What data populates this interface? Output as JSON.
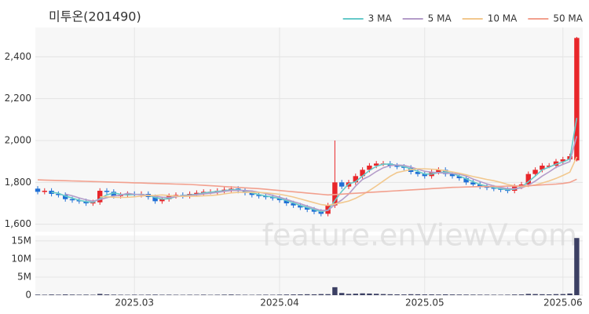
{
  "chart_data": {
    "type": "candlestick",
    "title": "미투온(201490)",
    "watermark": "feature.enViewV.com",
    "categories": [
      null,
      null,
      null,
      null,
      null,
      null,
      null,
      null,
      null,
      null,
      null,
      null,
      null,
      null,
      null,
      null,
      null,
      null,
      null,
      null,
      null,
      null,
      null,
      null,
      null,
      null,
      null,
      null,
      null,
      null,
      null,
      null,
      null,
      null,
      null,
      null,
      null,
      null,
      null,
      null,
      null,
      null,
      null,
      null,
      null,
      null,
      null,
      null,
      null,
      null,
      null,
      null,
      null,
      null,
      null,
      null,
      null,
      null,
      null,
      null,
      null,
      null,
      null,
      null,
      null,
      null,
      null,
      null,
      null,
      null,
      null,
      null,
      null,
      null,
      null,
      null,
      null,
      null,
      null
    ],
    "xticks": [
      {
        "value": 14,
        "label": "2025.03"
      },
      {
        "value": 35,
        "label": "2025.04"
      },
      {
        "value": 56,
        "label": "2025.05"
      },
      {
        "value": 76,
        "label": "2025.06"
      }
    ],
    "open": [
      1770,
      1755,
      1760,
      1745,
      1740,
      1720,
      1715,
      1710,
      1700,
      1705,
      1760,
      1755,
      1735,
      1740,
      1745,
      1740,
      1745,
      1730,
      1710,
      1720,
      1735,
      1740,
      1735,
      1745,
      1750,
      1755,
      1755,
      1760,
      1765,
      1770,
      1760,
      1750,
      1740,
      1735,
      1730,
      1725,
      1715,
      1700,
      1690,
      1680,
      1670,
      1660,
      1650,
      1690,
      1800,
      1780,
      1800,
      1830,
      1860,
      1880,
      1890,
      1890,
      1880,
      1875,
      1870,
      1850,
      1840,
      1830,
      1850,
      1860,
      1840,
      1830,
      1820,
      1800,
      1790,
      1780,
      1775,
      1770,
      1765,
      1760,
      1780,
      1790,
      1840,
      1860,
      1880,
      1880,
      1900,
      1910,
      1905
    ],
    "high": [
      1782,
      1772,
      1772,
      1757,
      1752,
      1732,
      1727,
      1722,
      1717,
      1772,
      1772,
      1767,
      1752,
      1757,
      1757,
      1757,
      1757,
      1742,
      1732,
      1747,
      1752,
      1752,
      1757,
      1762,
      1767,
      1767,
      1772,
      1777,
      1782,
      1782,
      1772,
      1762,
      1752,
      1747,
      1742,
      1737,
      1727,
      1712,
      1702,
      1692,
      1682,
      1672,
      1702,
      2000,
      1812,
      1812,
      1842,
      1872,
      1892,
      1902,
      1902,
      1902,
      1892,
      1887,
      1882,
      1862,
      1852,
      1862,
      1872,
      1872,
      1852,
      1842,
      1832,
      1812,
      1802,
      1792,
      1787,
      1782,
      1777,
      1792,
      1802,
      1852,
      1872,
      1892,
      1892,
      1912,
      1922,
      1937,
      2495
    ],
    "low": [
      1743,
      1743,
      1733,
      1728,
      1708,
      1703,
      1698,
      1688,
      1688,
      1693,
      1743,
      1723,
      1723,
      1728,
      1728,
      1728,
      1718,
      1698,
      1698,
      1708,
      1723,
      1723,
      1723,
      1733,
      1738,
      1743,
      1743,
      1748,
      1753,
      1748,
      1738,
      1728,
      1723,
      1718,
      1713,
      1703,
      1688,
      1678,
      1668,
      1658,
      1648,
      1638,
      1638,
      1678,
      1768,
      1768,
      1788,
      1818,
      1848,
      1868,
      1878,
      1868,
      1863,
      1858,
      1838,
      1828,
      1818,
      1818,
      1838,
      1828,
      1818,
      1808,
      1788,
      1778,
      1768,
      1763,
      1758,
      1753,
      1748,
      1748,
      1768,
      1778,
      1828,
      1848,
      1868,
      1868,
      1888,
      1898,
      1900
    ],
    "close": [
      1755,
      1760,
      1745,
      1740,
      1720,
      1715,
      1710,
      1700,
      1705,
      1760,
      1755,
      1735,
      1740,
      1745,
      1740,
      1745,
      1730,
      1710,
      1720,
      1735,
      1740,
      1735,
      1745,
      1750,
      1755,
      1755,
      1760,
      1765,
      1770,
      1760,
      1750,
      1740,
      1735,
      1730,
      1725,
      1715,
      1700,
      1690,
      1680,
      1670,
      1660,
      1650,
      1690,
      1800,
      1780,
      1800,
      1830,
      1860,
      1880,
      1890,
      1890,
      1880,
      1875,
      1870,
      1850,
      1840,
      1830,
      1850,
      1860,
      1840,
      1830,
      1820,
      1800,
      1790,
      1780,
      1775,
      1770,
      1765,
      1760,
      1780,
      1790,
      1840,
      1860,
      1880,
      1880,
      1900,
      1910,
      1925,
      2490
    ],
    "up_color": "#e8262a",
    "down_color": "#1f6fd6",
    "ylim": [
      1565,
      2540
    ],
    "yticks": [
      {
        "value": 1600,
        "label": "1,600"
      },
      {
        "value": 1800,
        "label": "1,800"
      },
      {
        "value": 2000,
        "label": "2,000"
      },
      {
        "value": 2200,
        "label": "2,200"
      },
      {
        "value": 2400,
        "label": "2,400"
      }
    ],
    "grid": true,
    "legend": "top-right",
    "series": [
      {
        "name": "3 MA",
        "color": "#66c9c9",
        "values": [
          null,
          null,
          1753,
          1748,
          1735,
          1725,
          1715,
          1708,
          1705,
          1722,
          1740,
          1750,
          1743,
          1740,
          1742,
          1743,
          1738,
          1728,
          1720,
          1722,
          1732,
          1737,
          1740,
          1743,
          1750,
          1753,
          1757,
          1760,
          1765,
          1765,
          1760,
          1750,
          1742,
          1735,
          1730,
          1723,
          1713,
          1702,
          1690,
          1680,
          1670,
          1660,
          1667,
          1713,
          1757,
          1793,
          1803,
          1830,
          1857,
          1877,
          1887,
          1887,
          1882,
          1875,
          1865,
          1853,
          1840,
          1840,
          1847,
          1850,
          1843,
          1830,
          1817,
          1803,
          1790,
          1782,
          1775,
          1770,
          1765,
          1768,
          1777,
          1803,
          1830,
          1860,
          1873,
          1887,
          1897,
          1912,
          2108
        ]
      },
      {
        "name": "5 MA",
        "color": "#b49cc9",
        "values": [
          null,
          null,
          null,
          null,
          1744,
          1736,
          1726,
          1717,
          1710,
          1718,
          1727,
          1735,
          1739,
          1748,
          1743,
          1741,
          1739,
          1734,
          1729,
          1728,
          1731,
          1736,
          1737,
          1741,
          1745,
          1748,
          1752,
          1757,
          1761,
          1762,
          1761,
          1759,
          1753,
          1747,
          1738,
          1729,
          1719,
          1708,
          1698,
          1687,
          1676,
          1666,
          1666,
          1694,
          1716,
          1744,
          1782,
          1814,
          1830,
          1852,
          1870,
          1880,
          1883,
          1881,
          1873,
          1863,
          1853,
          1849,
          1846,
          1844,
          1842,
          1840,
          1830,
          1816,
          1804,
          1793,
          1783,
          1776,
          1770,
          1770,
          1773,
          1787,
          1806,
          1830,
          1850,
          1872,
          1886,
          1899,
          2021
        ]
      },
      {
        "name": "10 MA",
        "color": "#f2c88e",
        "values": [
          null,
          null,
          null,
          null,
          null,
          null,
          null,
          null,
          null,
          1731,
          1731,
          1729,
          1728,
          1729,
          1731,
          1735,
          1737,
          1738,
          1740,
          1737,
          1735,
          1733,
          1734,
          1734,
          1736,
          1737,
          1740,
          1745,
          1750,
          1752,
          1753,
          1753,
          1752,
          1750,
          1747,
          1743,
          1737,
          1730,
          1721,
          1712,
          1703,
          1694,
          1690,
          1697,
          1703,
          1711,
          1724,
          1741,
          1761,
          1783,
          1806,
          1829,
          1847,
          1854,
          1861,
          1865,
          1865,
          1863,
          1861,
          1856,
          1850,
          1844,
          1836,
          1828,
          1821,
          1814,
          1808,
          1800,
          1790,
          1784,
          1780,
          1782,
          1788,
          1797,
          1807,
          1819,
          1833,
          1849,
          1922
        ]
      },
      {
        "name": "50 MA",
        "color": "#f2a08e",
        "values": [
          1812,
          1811,
          1810,
          1809,
          1808,
          1807,
          1806,
          1805,
          1804,
          1803,
          1802,
          1801,
          1800,
          1799,
          1798,
          1797,
          1796,
          1795,
          1794,
          1793,
          1792,
          1791,
          1790,
          1788,
          1786,
          1784,
          1782,
          1780,
          1778,
          1776,
          1774,
          1772,
          1770,
          1767,
          1764,
          1761,
          1758,
          1755,
          1752,
          1749,
          1746,
          1743,
          1740,
          1742,
          1744,
          1746,
          1748,
          1750,
          1752,
          1754,
          1756,
          1758,
          1760,
          1762,
          1764,
          1766,
          1768,
          1770,
          1772,
          1774,
          1776,
          1777,
          1778,
          1779,
          1780,
          1780,
          1781,
          1781,
          1782,
          1782,
          1783,
          1784,
          1786,
          1788,
          1790,
          1792,
          1795,
          1800,
          1815
        ]
      }
    ],
    "volume": {
      "color": "#3b3f63",
      "ylim": [
        0,
        16500000
      ],
      "yticks": [
        0,
        {
          "value": 5000000,
          "label": "5M"
        },
        {
          "value": 10000000,
          "label": "10M"
        },
        {
          "value": 15000000,
          "label": "15M"
        }
      ],
      "values": [
        150000,
        120000,
        180000,
        140000,
        200000,
        160000,
        130000,
        150000,
        110000,
        350000,
        200000,
        150000,
        120000,
        100000,
        130000,
        110000,
        140000,
        160000,
        120000,
        130000,
        110000,
        100000,
        120000,
        110000,
        140000,
        100000,
        120000,
        150000,
        180000,
        130000,
        110000,
        100000,
        120000,
        130000,
        110000,
        150000,
        180000,
        200000,
        220000,
        250000,
        230000,
        300000,
        280000,
        2200000,
        600000,
        350000,
        400000,
        500000,
        450000,
        380000,
        300000,
        250000,
        220000,
        200000,
        260000,
        240000,
        200000,
        210000,
        180000,
        220000,
        190000,
        170000,
        160000,
        150000,
        140000,
        130000,
        120000,
        110000,
        130000,
        180000,
        200000,
        350000,
        300000,
        250000,
        220000,
        280000,
        300000,
        450000,
        15800000
      ]
    }
  }
}
